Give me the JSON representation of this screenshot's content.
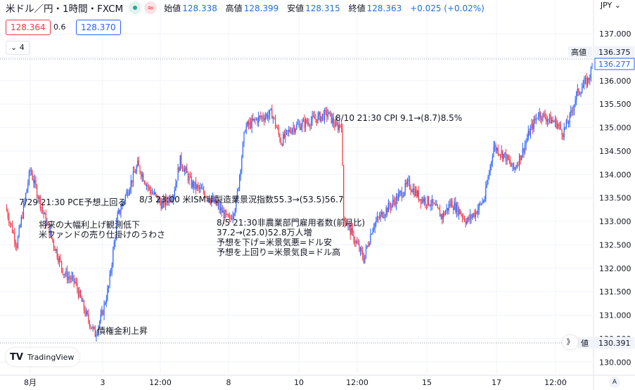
{
  "header": {
    "symbol": "米ドル／円・1時間・FXCM",
    "open_label": "始値",
    "open": "128.338",
    "high_label": "高値",
    "high": "128.399",
    "low_label": "安値",
    "low": "128.315",
    "close_label": "終値",
    "close": "128.363",
    "change": "+0.025 (+0.02%)",
    "currency": "JPY",
    "wave_icon": "≈"
  },
  "trade": {
    "sell": "128.364",
    "spread": "0.6",
    "buy": "128.370"
  },
  "indicators_toggle": "4",
  "logo": "TradingView",
  "scroll_label": "》",
  "auto_label": "A",
  "chart_data": {
    "type": "candlestick",
    "ylim": [
      129.75,
      137.3
    ],
    "y_ticks": [
      "137.000",
      "136.500",
      "136.000",
      "135.500",
      "135.000",
      "134.500",
      "134.000",
      "133.500",
      "133.000",
      "132.500",
      "132.000",
      "131.500",
      "131.000",
      "130.500",
      "130.000"
    ],
    "x_ticks": [
      "8月",
      "3",
      "12:00",
      "8",
      "10",
      "12:00",
      "15",
      "17",
      "12:00"
    ],
    "price_labels": [
      {
        "label": "高値",
        "value": "136.375"
      },
      {
        "label": "",
        "value": "136.277"
      },
      {
        "label": "値",
        "value": "130.391"
      }
    ],
    "annotations": [
      "7/29 21:30 PCE予想上回る",
      "8/3 23:00 米ISM非製造業景況指数55.3→(53.5)56.7",
      "将来の大幅利上げ観測低下",
      "米ファンドの売り仕掛けのうわさ",
      "8/5 21:30非農業部門雇用者数(前月比)",
      "37.2→(25.0)52.8万人増",
      "予想を下げ=米景気悪=ドル安",
      "予想を上回り=米景気良=ドル高",
      "8/10 21:30 CPI 9.1→(8.7)8.5%",
      "債権金利上昇"
    ],
    "anchors": [
      [
        0,
        133.3
      ],
      [
        10,
        132.5
      ],
      [
        22,
        134.1
      ],
      [
        36,
        133.0
      ],
      [
        52,
        131.9
      ],
      [
        62,
        131.7
      ],
      [
        72,
        131.0
      ],
      [
        80,
        130.6
      ],
      [
        86,
        131.0
      ],
      [
        92,
        131.6
      ],
      [
        100,
        133.1
      ],
      [
        108,
        133.6
      ],
      [
        118,
        134.2
      ],
      [
        128,
        133.7
      ],
      [
        140,
        133.35
      ],
      [
        150,
        133.6
      ],
      [
        156,
        134.3
      ],
      [
        166,
        133.8
      ],
      [
        178,
        133.6
      ],
      [
        190,
        133.3
      ],
      [
        200,
        133.0
      ],
      [
        206,
        133.4
      ],
      [
        214,
        135.0
      ],
      [
        226,
        135.2
      ],
      [
        238,
        135.3
      ],
      [
        246,
        134.7
      ],
      [
        256,
        135.0
      ],
      [
        268,
        135.1
      ],
      [
        278,
        135.2
      ],
      [
        288,
        135.3
      ],
      [
        296,
        135.0
      ],
      [
        300,
        135.1
      ],
      [
        302,
        133.1
      ],
      [
        312,
        132.6
      ],
      [
        320,
        132.2
      ],
      [
        328,
        132.9
      ],
      [
        338,
        133.2
      ],
      [
        350,
        133.5
      ],
      [
        360,
        133.8
      ],
      [
        370,
        133.5
      ],
      [
        380,
        133.4
      ],
      [
        390,
        133.1
      ],
      [
        398,
        133.4
      ],
      [
        406,
        133.2
      ],
      [
        412,
        133.0
      ],
      [
        420,
        133.2
      ],
      [
        428,
        133.5
      ],
      [
        436,
        134.6
      ],
      [
        446,
        134.4
      ],
      [
        454,
        134.1
      ],
      [
        462,
        134.5
      ],
      [
        468,
        134.9
      ],
      [
        476,
        135.3
      ],
      [
        484,
        135.2
      ],
      [
        492,
        135.1
      ],
      [
        498,
        134.9
      ],
      [
        504,
        135.2
      ],
      [
        510,
        135.7
      ],
      [
        516,
        135.9
      ],
      [
        520,
        136.0
      ],
      [
        524,
        136.25
      ]
    ],
    "x_max": 524
  },
  "colors": {
    "up": "#2962ff",
    "down": "#f23645",
    "grid": "#f0f3fa",
    "axis_text": "#131722"
  }
}
